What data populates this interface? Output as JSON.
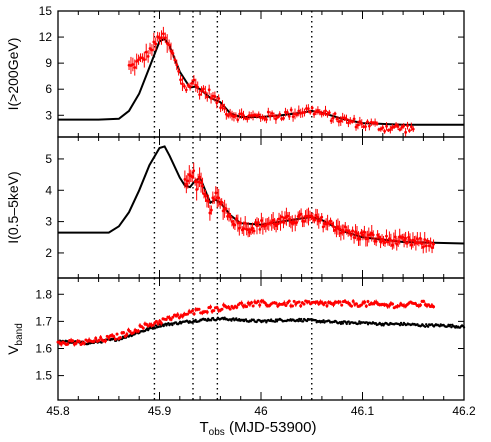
{
  "chart_data": [
    {
      "type": "scatter",
      "panel": "top",
      "ylabel": "I(>200GeV)",
      "ylim": [
        0.5,
        15
      ],
      "yticks": [
        3,
        6,
        9,
        12,
        15
      ],
      "xlim": [
        45.8,
        46.2
      ],
      "series": [
        {
          "kind": "model-curve",
          "color": "#000000",
          "points": [
            [
              45.8,
              2.5
            ],
            [
              45.84,
              2.5
            ],
            [
              45.86,
              2.6
            ],
            [
              45.87,
              3.5
            ],
            [
              45.88,
              5.5
            ],
            [
              45.89,
              8.5
            ],
            [
              45.9,
              11.5
            ],
            [
              45.905,
              11.8
            ],
            [
              45.91,
              11.0
            ],
            [
              45.92,
              8.0
            ],
            [
              45.93,
              6.2
            ],
            [
              45.935,
              6.3
            ],
            [
              45.94,
              6.0
            ],
            [
              45.95,
              5.0
            ],
            [
              45.96,
              4.5
            ],
            [
              45.97,
              3.2
            ],
            [
              45.98,
              2.8
            ],
            [
              46.0,
              2.8
            ],
            [
              46.02,
              3.0
            ],
            [
              46.04,
              3.3
            ],
            [
              46.05,
              3.5
            ],
            [
              46.06,
              3.3
            ],
            [
              46.08,
              2.6
            ],
            [
              46.1,
              2.1
            ],
            [
              46.14,
              1.9
            ],
            [
              46.2,
              1.9
            ]
          ]
        },
        {
          "kind": "data-with-errorbars",
          "color": "#ff0000",
          "x_range": [
            45.87,
            46.15
          ],
          "points": [
            [
              45.873,
              8.6
            ],
            [
              45.88,
              9.2
            ],
            [
              45.887,
              9.9
            ],
            [
              45.893,
              10.8
            ],
            [
              45.897,
              11.4
            ],
            [
              45.9,
              12.2
            ],
            [
              45.903,
              12.0
            ],
            [
              45.907,
              11.5
            ],
            [
              45.91,
              10.6
            ],
            [
              45.913,
              10.0
            ],
            [
              45.917,
              8.6
            ],
            [
              45.92,
              7.4
            ],
            [
              45.923,
              6.6
            ],
            [
              45.927,
              6.1
            ],
            [
              45.93,
              6.5
            ],
            [
              45.933,
              6.9
            ],
            [
              45.937,
              6.2
            ],
            [
              45.94,
              5.8
            ],
            [
              45.943,
              5.9
            ],
            [
              45.947,
              5.4
            ],
            [
              45.95,
              5.6
            ],
            [
              45.953,
              5.0
            ],
            [
              45.957,
              4.6
            ],
            [
              45.96,
              4.2
            ],
            [
              45.965,
              3.6
            ],
            [
              45.97,
              3.2
            ],
            [
              45.98,
              2.9
            ],
            [
              45.99,
              2.8
            ],
            [
              46.0,
              2.9
            ],
            [
              46.01,
              2.9
            ],
            [
              46.02,
              3.0
            ],
            [
              46.03,
              3.2
            ],
            [
              46.04,
              3.5
            ],
            [
              46.05,
              3.6
            ],
            [
              46.06,
              3.2
            ],
            [
              46.07,
              2.8
            ],
            [
              46.08,
              2.5
            ],
            [
              46.09,
              2.2
            ],
            [
              46.1,
              2.0
            ],
            [
              46.11,
              1.9
            ],
            [
              46.12,
              1.6
            ],
            [
              46.13,
              1.6
            ],
            [
              46.14,
              1.5
            ],
            [
              46.15,
              1.5
            ]
          ]
        }
      ]
    },
    {
      "type": "scatter",
      "panel": "middle",
      "ylabel": "I(0.5–5keV)",
      "ylim": [
        1.2,
        5.7
      ],
      "yticks": [
        2,
        3,
        4,
        5
      ],
      "xlim": [
        45.8,
        46.2
      ],
      "series": [
        {
          "kind": "model-curve",
          "color": "#000000",
          "points": [
            [
              45.8,
              2.65
            ],
            [
              45.85,
              2.65
            ],
            [
              45.86,
              2.85
            ],
            [
              45.87,
              3.3
            ],
            [
              45.88,
              4.0
            ],
            [
              45.89,
              4.8
            ],
            [
              45.9,
              5.35
            ],
            [
              45.905,
              5.4
            ],
            [
              45.91,
              5.1
            ],
            [
              45.92,
              4.4
            ],
            [
              45.925,
              4.15
            ],
            [
              45.93,
              4.1
            ],
            [
              45.935,
              4.3
            ],
            [
              45.94,
              4.4
            ],
            [
              45.945,
              4.0
            ],
            [
              45.95,
              3.6
            ],
            [
              45.955,
              3.7
            ],
            [
              45.96,
              3.6
            ],
            [
              45.97,
              3.2
            ],
            [
              45.98,
              2.95
            ],
            [
              46.0,
              2.9
            ],
            [
              46.02,
              3.0
            ],
            [
              46.04,
              3.1
            ],
            [
              46.05,
              3.15
            ],
            [
              46.06,
              3.05
            ],
            [
              46.08,
              2.7
            ],
            [
              46.1,
              2.5
            ],
            [
              46.14,
              2.35
            ],
            [
              46.2,
              2.3
            ]
          ]
        },
        {
          "kind": "data-with-errorbars",
          "color": "#ff0000",
          "x_range": [
            45.925,
            46.17
          ],
          "points": [
            [
              45.927,
              4.2
            ],
            [
              45.93,
              4.5
            ],
            [
              45.933,
              4.6
            ],
            [
              45.937,
              4.1
            ],
            [
              45.94,
              4.3
            ],
            [
              45.943,
              3.9
            ],
            [
              45.947,
              3.6
            ],
            [
              45.95,
              3.4
            ],
            [
              45.955,
              3.8
            ],
            [
              45.96,
              3.6
            ],
            [
              45.965,
              3.4
            ],
            [
              45.97,
              3.1
            ],
            [
              45.98,
              2.9
            ],
            [
              45.99,
              2.8
            ],
            [
              46.0,
              2.9
            ],
            [
              46.01,
              2.95
            ],
            [
              46.02,
              3.0
            ],
            [
              46.03,
              3.05
            ],
            [
              46.04,
              3.1
            ],
            [
              46.05,
              3.1
            ],
            [
              46.06,
              3.0
            ],
            [
              46.07,
              2.9
            ],
            [
              46.08,
              2.75
            ],
            [
              46.09,
              2.6
            ],
            [
              46.1,
              2.55
            ],
            [
              46.11,
              2.5
            ],
            [
              46.12,
              2.4
            ],
            [
              46.13,
              2.4
            ],
            [
              46.14,
              2.35
            ],
            [
              46.15,
              2.35
            ],
            [
              46.16,
              2.3
            ],
            [
              46.17,
              2.3
            ]
          ]
        }
      ]
    },
    {
      "type": "scatter",
      "panel": "bottom",
      "ylabel": "V",
      "ylabel_sub": "band",
      "ylim": [
        1.41,
        1.86
      ],
      "yticks": [
        "1.5",
        "1.6",
        "1.7",
        "1.8"
      ],
      "xlim": [
        45.8,
        46.2
      ],
      "xticks": [
        "45.8",
        "45.9",
        "46",
        "46.1",
        "46.2"
      ],
      "xlabel": "T",
      "xlabel_sub": "obs",
      "xlabel_rest": " (MJD-53900)",
      "series": [
        {
          "kind": "black-points",
          "color": "#000000",
          "points": [
            [
              45.8,
              1.625
            ],
            [
              45.83,
              1.62
            ],
            [
              45.86,
              1.635
            ],
            [
              45.88,
              1.66
            ],
            [
              45.9,
              1.685
            ],
            [
              45.92,
              1.695
            ],
            [
              45.94,
              1.705
            ],
            [
              45.96,
              1.71
            ],
            [
              45.98,
              1.705
            ],
            [
              46.0,
              1.7
            ],
            [
              46.02,
              1.705
            ],
            [
              46.04,
              1.705
            ],
            [
              46.06,
              1.7
            ],
            [
              46.08,
              1.695
            ],
            [
              46.1,
              1.695
            ],
            [
              46.12,
              1.69
            ],
            [
              46.14,
              1.69
            ],
            [
              46.16,
              1.685
            ],
            [
              46.18,
              1.685
            ],
            [
              46.2,
              1.68
            ]
          ]
        },
        {
          "kind": "red-points",
          "color": "#ff0000",
          "x_range": [
            45.8,
            46.17
          ],
          "points": [
            [
              45.8,
              1.62
            ],
            [
              45.82,
              1.62
            ],
            [
              45.84,
              1.63
            ],
            [
              45.86,
              1.645
            ],
            [
              45.88,
              1.675
            ],
            [
              45.9,
              1.7
            ],
            [
              45.92,
              1.72
            ],
            [
              45.94,
              1.74
            ],
            [
              45.96,
              1.75
            ],
            [
              45.98,
              1.76
            ],
            [
              46.0,
              1.765
            ],
            [
              46.02,
              1.765
            ],
            [
              46.04,
              1.765
            ],
            [
              46.06,
              1.765
            ],
            [
              46.08,
              1.765
            ],
            [
              46.1,
              1.765
            ],
            [
              46.12,
              1.76
            ],
            [
              46.14,
              1.76
            ],
            [
              46.16,
              1.765
            ],
            [
              46.17,
              1.76
            ]
          ]
        }
      ]
    }
  ],
  "vlines_x": [
    45.895,
    45.933,
    45.957,
    46.05
  ],
  "panel_order": [
    "top",
    "middle",
    "bottom"
  ]
}
